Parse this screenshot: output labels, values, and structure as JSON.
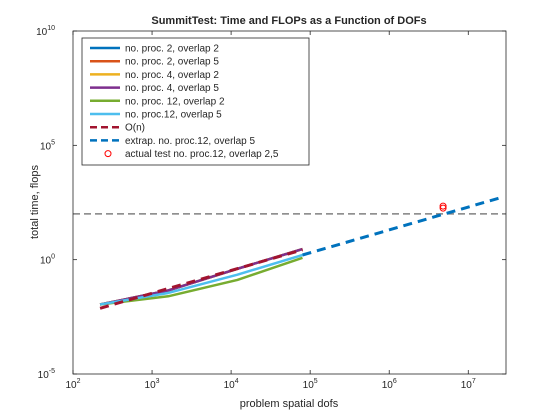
{
  "chart_data": {
    "type": "line",
    "title": "SummitTest: Time and FLOPs as a Function of DOFs",
    "xlabel": "problem spatial dofs",
    "ylabel": "total time, flops",
    "xscale": "log",
    "yscale": "log",
    "xlim": [
      100,
      30000000
    ],
    "ylim": [
      1e-05,
      10000000000
    ],
    "grid": false,
    "legend_position": "top-left",
    "x_ticks": [
      {
        "base": "10",
        "exp": "2",
        "value": 100
      },
      {
        "base": "10",
        "exp": "3",
        "value": 1000
      },
      {
        "base": "10",
        "exp": "4",
        "value": 10000
      },
      {
        "base": "10",
        "exp": "5",
        "value": 100000
      },
      {
        "base": "10",
        "exp": "6",
        "value": 1000000
      },
      {
        "base": "10",
        "exp": "7",
        "value": 10000000
      }
    ],
    "y_ticks": [
      {
        "base": "10",
        "exp": "-5",
        "value": 1e-05
      },
      {
        "base": "10",
        "exp": "0",
        "value": 1
      },
      {
        "base": "10",
        "exp": "5",
        "value": 100000
      },
      {
        "base": "10",
        "exp": "10",
        "value": 10000000000
      }
    ],
    "series": [
      {
        "name": "no. proc. 2, overlap 2",
        "color": "#0072BD",
        "style": "solid",
        "points": [
          [
            220,
            0.011
          ],
          [
            1600,
            0.045
          ],
          [
            12000,
            0.4
          ],
          [
            80000,
            2.9
          ]
        ]
      },
      {
        "name": "no. proc. 2, overlap 5",
        "color": "#D95319",
        "style": "solid",
        "points": [
          [
            220,
            0.011
          ],
          [
            1600,
            0.045
          ],
          [
            12000,
            0.4
          ],
          [
            80000,
            2.9
          ]
        ]
      },
      {
        "name": "no. proc. 4, overlap 2",
        "color": "#EDB120",
        "style": "solid",
        "points": [
          [
            220,
            0.011
          ],
          [
            1600,
            0.045
          ],
          [
            12000,
            0.4
          ],
          [
            80000,
            2.9
          ]
        ]
      },
      {
        "name": "no. proc. 4, overlap 5",
        "color": "#7E2F8E",
        "style": "solid",
        "points": [
          [
            220,
            0.011
          ],
          [
            1600,
            0.045
          ],
          [
            12000,
            0.4
          ],
          [
            80000,
            2.9
          ]
        ]
      },
      {
        "name": "no. proc. 12, overlap 2",
        "color": "#77AC30",
        "style": "solid",
        "points": [
          [
            220,
            0.011
          ],
          [
            1600,
            0.025
          ],
          [
            12000,
            0.13
          ],
          [
            80000,
            1.2
          ]
        ]
      },
      {
        "name": "no. proc.12, overlap 5",
        "color": "#4DBEEE",
        "style": "solid",
        "points": [
          [
            220,
            0.011
          ],
          [
            1600,
            0.035
          ],
          [
            12000,
            0.22
          ],
          [
            80000,
            1.6
          ]
        ]
      },
      {
        "name": "O(n)",
        "color": "#A2142F",
        "style": "dashed",
        "points": [
          [
            220,
            0.0075
          ],
          [
            80000,
            2.7
          ]
        ]
      },
      {
        "name": "extrap. no. proc.12, overlap 5",
        "color": "#0072BD",
        "style": "dashed",
        "points": [
          [
            80000,
            1.6
          ],
          [
            27000000,
            540
          ]
        ]
      },
      {
        "name": "actual test no. proc.12, overlap 2,5",
        "color": "#FF0000",
        "style": "markers",
        "points": [
          [
            4800000,
            180
          ],
          [
            4800000,
            220
          ]
        ]
      }
    ],
    "reference_lines": [
      {
        "type": "horizontal",
        "y": 100,
        "color": "#808080",
        "style": "dashed"
      }
    ]
  }
}
